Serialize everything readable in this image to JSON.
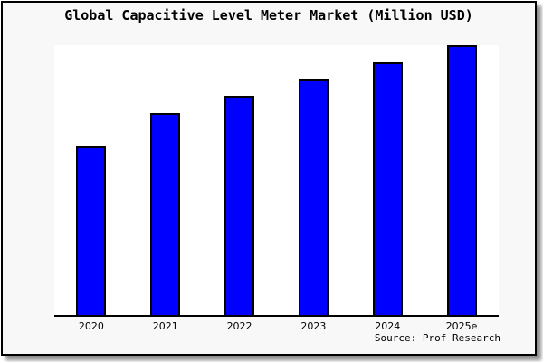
{
  "chart": {
    "title": "Global Capacitive Level Meter Market (Million USD)",
    "source": "Source: Prof Research",
    "bar_color": "#0000ff",
    "bar_border_color": "#000000",
    "background_color": "#f8f8f8",
    "plot_background_color": "#ffffff"
  },
  "chart_data": {
    "type": "bar",
    "title": "Global Capacitive Level Meter Market (Million USD)",
    "categories": [
      "2020",
      "2021",
      "2022",
      "2023",
      "2024",
      "2025e"
    ],
    "values": [
      62.7,
      75.0,
      81.3,
      87.7,
      93.7,
      100.0
    ],
    "values_note": "No y-axis scale or data labels shown; values estimated as percent of tallest bar (2025e = 100)",
    "xlabel": "",
    "ylabel": "",
    "ylim": [
      0,
      100
    ],
    "grid": false,
    "legend": false,
    "bar_color": "#0000ff",
    "source": "Source: Prof Research"
  }
}
